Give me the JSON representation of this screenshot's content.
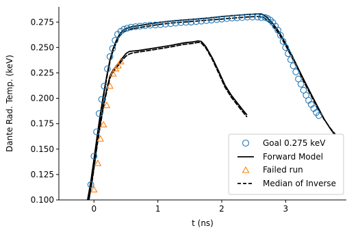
{
  "chart_data": {
    "type": "line",
    "title": "",
    "xlabel": "t (ns)",
    "ylabel": "Dante Rad. Temp. (keV)",
    "xlim": [
      -0.55,
      3.95
    ],
    "ylim": [
      0.1,
      0.29
    ],
    "xticks": [
      0,
      1,
      2,
      3
    ],
    "xtick_labels": [
      "0",
      "1",
      "2",
      "3"
    ],
    "yticks": [
      0.1,
      0.125,
      0.15,
      0.175,
      0.2,
      0.225,
      0.25,
      0.275
    ],
    "ytick_labels": [
      "0.100",
      "0.125",
      "0.150",
      "0.175",
      "0.200",
      "0.225",
      "0.250",
      "0.275"
    ],
    "grid": false,
    "legend_position": "lower-right",
    "series": [
      {
        "name": "Goal 0.275 keV",
        "style": "circle-markers",
        "color": "#1f77b4",
        "x": [
          -0.05,
          0.0,
          0.04,
          0.08,
          0.12,
          0.16,
          0.21,
          0.25,
          0.29,
          0.33,
          0.37,
          0.42,
          0.47,
          0.52,
          0.58,
          0.65,
          0.72,
          0.8,
          0.88,
          0.96,
          1.04,
          1.12,
          1.2,
          1.28,
          1.36,
          1.44,
          1.52,
          1.6,
          1.68,
          1.76,
          1.84,
          1.92,
          2.0,
          2.08,
          2.16,
          2.24,
          2.32,
          2.4,
          2.48,
          2.56,
          2.62,
          2.68,
          2.72,
          2.76,
          2.8,
          2.84,
          2.88,
          2.92,
          2.96,
          3.0,
          3.04,
          3.08,
          3.12,
          3.16,
          3.2,
          3.24,
          3.28,
          3.32,
          3.36,
          3.4,
          3.44,
          3.48,
          3.52
        ],
        "y": [
          0.115,
          0.143,
          0.167,
          0.185,
          0.199,
          0.212,
          0.229,
          0.241,
          0.249,
          0.257,
          0.263,
          0.266,
          0.268,
          0.269,
          0.27,
          0.2705,
          0.271,
          0.2715,
          0.272,
          0.2722,
          0.2725,
          0.273,
          0.2735,
          0.274,
          0.2745,
          0.2748,
          0.275,
          0.2755,
          0.276,
          0.2765,
          0.277,
          0.2775,
          0.278,
          0.2785,
          0.279,
          0.2792,
          0.2795,
          0.28,
          0.28,
          0.28,
          0.2795,
          0.2795,
          0.2785,
          0.277,
          0.2745,
          0.271,
          0.267,
          0.262,
          0.256,
          0.25,
          0.244,
          0.238,
          0.232,
          0.226,
          0.219,
          0.214,
          0.208,
          0.203,
          0.198,
          0.194,
          0.19,
          0.186,
          0.183
        ]
      },
      {
        "name": "Forward Model",
        "style": "solid",
        "color": "#000000",
        "x": [
          -0.1,
          -0.05,
          0.0,
          0.05,
          0.1,
          0.15,
          0.2,
          0.25,
          0.3,
          0.35,
          0.4,
          0.45,
          0.5,
          0.6,
          0.8,
          1.0,
          1.2,
          1.4,
          1.6,
          1.8,
          2.0,
          2.2,
          2.4,
          2.55,
          2.62,
          2.66,
          2.7,
          2.75,
          2.8,
          2.85,
          2.9,
          3.0,
          3.1,
          3.2,
          3.3,
          3.4,
          3.5,
          3.6,
          3.7,
          3.78
        ],
        "y": [
          0.1,
          0.118,
          0.14,
          0.163,
          0.185,
          0.204,
          0.222,
          0.238,
          0.249,
          0.257,
          0.263,
          0.2665,
          0.2685,
          0.2705,
          0.2725,
          0.2745,
          0.276,
          0.277,
          0.278,
          0.279,
          0.2805,
          0.2815,
          0.2825,
          0.283,
          0.283,
          0.282,
          0.28,
          0.277,
          0.2735,
          0.2695,
          0.265,
          0.254,
          0.242,
          0.229,
          0.2165,
          0.204,
          0.192,
          0.18,
          0.17,
          0.163
        ]
      },
      {
        "name": "",
        "style": "solid",
        "color": "#000000",
        "x": [
          -0.08,
          -0.03,
          0.0,
          0.05,
          0.1,
          0.15,
          0.2,
          0.25,
          0.3,
          0.35,
          0.4,
          0.45,
          0.5,
          0.55,
          0.6,
          0.7,
          0.8,
          0.9,
          1.0,
          1.2,
          1.4,
          1.55,
          1.63,
          1.68,
          1.75,
          1.85,
          1.95,
          2.05,
          2.15,
          2.25,
          2.35,
          2.39
        ],
        "y": [
          0.1,
          0.12,
          0.133,
          0.156,
          0.176,
          0.194,
          0.209,
          0.222,
          0.228,
          0.232,
          0.236,
          0.24,
          0.244,
          0.246,
          0.2465,
          0.247,
          0.248,
          0.249,
          0.25,
          0.252,
          0.2545,
          0.2555,
          0.2565,
          0.256,
          0.251,
          0.24,
          0.227,
          0.213,
          0.203,
          0.195,
          0.187,
          0.184
        ]
      },
      {
        "name": "Failed run",
        "style": "triangle-markers",
        "color": "#ff7f0e",
        "x": [
          0.0,
          0.06,
          0.1,
          0.15,
          0.2,
          0.25,
          0.3,
          0.34,
          0.38,
          0.42
        ],
        "y": [
          0.11,
          0.136,
          0.16,
          0.174,
          0.193,
          0.212,
          0.224,
          0.229,
          0.232,
          0.236
        ]
      },
      {
        "name": "Median of Inverse",
        "style": "dashed",
        "color": "#000000",
        "x": [
          -0.1,
          -0.05,
          0.0,
          0.05,
          0.1,
          0.15,
          0.2,
          0.25,
          0.3,
          0.35,
          0.4,
          0.45,
          0.5,
          0.6,
          0.8,
          1.0,
          1.2,
          1.4,
          1.6,
          1.8,
          2.0,
          2.2,
          2.4,
          2.55,
          2.62,
          2.66,
          2.7,
          2.75,
          2.8,
          2.85,
          2.9,
          3.0,
          3.1,
          3.2,
          3.3,
          3.4,
          3.5,
          3.6,
          3.7,
          3.78
        ],
        "y": [
          0.1,
          0.116,
          0.138,
          0.161,
          0.183,
          0.202,
          0.22,
          0.236,
          0.247,
          0.255,
          0.261,
          0.2645,
          0.2665,
          0.2685,
          0.2705,
          0.2725,
          0.274,
          0.275,
          0.276,
          0.277,
          0.278,
          0.279,
          0.28,
          0.2805,
          0.28,
          0.2795,
          0.2775,
          0.275,
          0.2715,
          0.2675,
          0.263,
          0.252,
          0.24,
          0.2275,
          0.2145,
          0.2025,
          0.1905,
          0.1795,
          0.1705,
          0.1645
        ]
      },
      {
        "name": "",
        "style": "dashed",
        "color": "#000000",
        "x": [
          -0.08,
          -0.03,
          0.0,
          0.05,
          0.1,
          0.15,
          0.2,
          0.25,
          0.3,
          0.35,
          0.4,
          0.45,
          0.5,
          0.55,
          0.6,
          0.7,
          0.8,
          0.9,
          1.0,
          1.2,
          1.4,
          1.55,
          1.63,
          1.68,
          1.75,
          1.85,
          1.95,
          2.05,
          2.15,
          2.25,
          2.35,
          2.39
        ],
        "y": [
          0.1,
          0.118,
          0.131,
          0.154,
          0.174,
          0.192,
          0.207,
          0.22,
          0.226,
          0.23,
          0.234,
          0.238,
          0.2415,
          0.2435,
          0.2445,
          0.2455,
          0.2465,
          0.2475,
          0.2485,
          0.2505,
          0.253,
          0.254,
          0.255,
          0.2545,
          0.2495,
          0.2385,
          0.225,
          0.211,
          0.201,
          0.193,
          0.185,
          0.182
        ]
      }
    ],
    "legend": {
      "entries": [
        {
          "label": "Goal 0.275 keV",
          "symbol": "circle",
          "color": "#1f77b4"
        },
        {
          "label": "Forward Model",
          "symbol": "solid-line",
          "color": "#000000"
        },
        {
          "label": "Failed run",
          "symbol": "triangle",
          "color": "#ff7f0e"
        },
        {
          "label": "Median of Inverse",
          "symbol": "dashed-line",
          "color": "#000000"
        }
      ]
    }
  }
}
